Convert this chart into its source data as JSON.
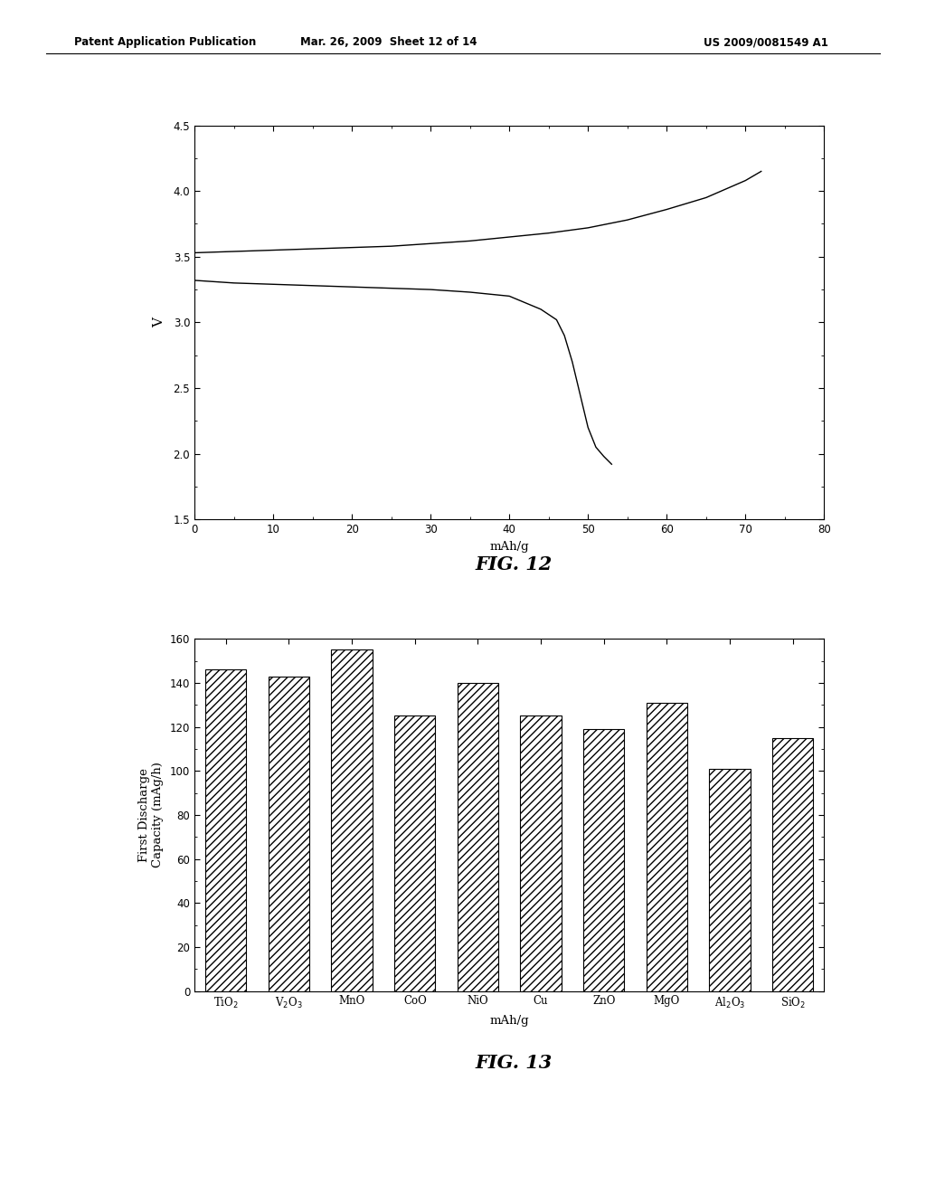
{
  "header_left": "Patent Application Publication",
  "header_mid": "Mar. 26, 2009  Sheet 12 of 14",
  "header_right": "US 2009/0081549 A1",
  "fig12": {
    "xlabel": "mAh/g",
    "ylabel": "V",
    "title": "FIG. 12",
    "xlim": [
      0,
      80
    ],
    "ylim": [
      1.5,
      4.5
    ],
    "xticks": [
      0,
      10,
      20,
      30,
      40,
      50,
      60,
      70,
      80
    ],
    "yticks": [
      1.5,
      2.0,
      2.5,
      3.0,
      3.5,
      4.0,
      4.5
    ],
    "charge_x": [
      0,
      5,
      10,
      15,
      20,
      25,
      30,
      35,
      40,
      45,
      50,
      55,
      60,
      65,
      70,
      72
    ],
    "charge_y": [
      3.53,
      3.54,
      3.55,
      3.56,
      3.57,
      3.58,
      3.6,
      3.62,
      3.65,
      3.68,
      3.72,
      3.78,
      3.86,
      3.95,
      4.08,
      4.15
    ],
    "discharge_x": [
      0,
      5,
      10,
      15,
      20,
      25,
      30,
      35,
      40,
      42,
      44,
      46,
      47,
      48,
      49,
      50,
      51,
      52,
      53
    ],
    "discharge_y": [
      3.32,
      3.3,
      3.29,
      3.28,
      3.27,
      3.26,
      3.25,
      3.23,
      3.2,
      3.15,
      3.1,
      3.02,
      2.9,
      2.7,
      2.45,
      2.2,
      2.05,
      1.98,
      1.92
    ]
  },
  "fig13": {
    "xlabel": "mAh/g",
    "ylabel": "First Discharge\nCapacity (mAg/h)",
    "title": "FIG. 13",
    "xlim": [
      -0.5,
      9.5
    ],
    "ylim": [
      0,
      160
    ],
    "yticks": [
      0,
      20,
      40,
      60,
      80,
      100,
      120,
      140,
      160
    ],
    "categories": [
      "TiO$_2$",
      "V$_2$O$_3$",
      "MnO",
      "CoO",
      "NiO",
      "Cu",
      "ZnO",
      "MgO",
      "Al$_2$O$_3$",
      "SiO$_2$"
    ],
    "values": [
      146,
      143,
      155,
      125,
      140,
      125,
      119,
      131,
      101,
      115
    ],
    "bar_color": "#ffffff",
    "bar_edgecolor": "#000000",
    "hatch": "////"
  }
}
